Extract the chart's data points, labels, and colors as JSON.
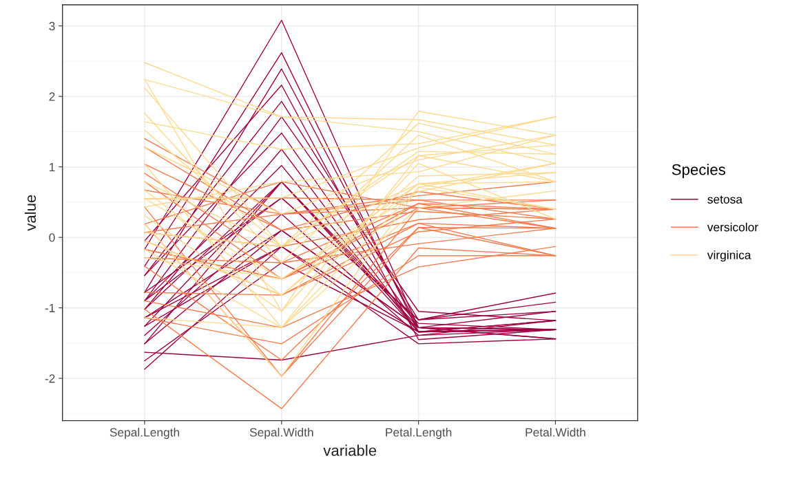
{
  "chart_data": {
    "type": "line",
    "xlabel": "variable",
    "ylabel": "value",
    "legend_title": "Species",
    "legend": "right",
    "grid": true,
    "categories": [
      "Sepal.Length",
      "Sepal.Width",
      "Petal.Length",
      "Petal.Width"
    ],
    "ylim": [
      -2.6,
      3.3
    ],
    "yticks": [
      -2,
      -1,
      0,
      1,
      2,
      3
    ],
    "series": [
      {
        "name": "setosa",
        "color": "#9e0142",
        "values": [
          -0.9,
          1.02,
          -1.34,
          -1.31
        ]
      },
      {
        "color": "#9e0142",
        "values": [
          -1.14,
          -0.13,
          -1.34,
          -1.31
        ]
      },
      {
        "color": "#9e0142",
        "values": [
          -1.39,
          0.33,
          -1.39,
          -1.31
        ]
      },
      {
        "color": "#9e0142",
        "values": [
          -1.51,
          0.1,
          -1.28,
          -1.31
        ]
      },
      {
        "color": "#9e0142",
        "values": [
          -1.02,
          1.25,
          -1.34,
          -1.31
        ]
      },
      {
        "color": "#9e0142",
        "values": [
          -0.54,
          1.93,
          -1.17,
          -1.05
        ]
      },
      {
        "color": "#9e0142",
        "values": [
          -1.51,
          0.79,
          -1.34,
          -1.18
        ]
      },
      {
        "color": "#9e0142",
        "values": [
          -1.02,
          0.79,
          -1.28,
          -1.31
        ]
      },
      {
        "color": "#9e0142",
        "values": [
          -1.75,
          -0.36,
          -1.34,
          -1.31
        ]
      },
      {
        "color": "#9e0142",
        "values": [
          -1.14,
          0.1,
          -1.28,
          -1.44
        ]
      },
      {
        "color": "#9e0142",
        "values": [
          -0.54,
          1.48,
          -1.28,
          -1.31
        ]
      },
      {
        "color": "#9e0142",
        "values": [
          -1.26,
          0.79,
          -1.22,
          -1.31
        ]
      },
      {
        "color": "#9e0142",
        "values": [
          -1.87,
          -0.13,
          -1.51,
          -1.44
        ]
      },
      {
        "color": "#9e0142",
        "values": [
          -0.05,
          2.16,
          -1.45,
          -1.31
        ]
      },
      {
        "color": "#9e0142",
        "values": [
          -0.17,
          3.08,
          -1.28,
          -1.05
        ]
      },
      {
        "color": "#9e0142",
        "values": [
          -0.78,
          2.39,
          -1.28,
          -1.44
        ]
      },
      {
        "color": "#9e0142",
        "values": [
          -0.41,
          2.62,
          -1.34,
          -1.31
        ]
      },
      {
        "color": "#9e0142",
        "values": [
          -0.9,
          1.71,
          -1.05,
          -1.18
        ]
      },
      {
        "color": "#9e0142",
        "values": [
          -1.63,
          -1.74,
          -1.39,
          -1.18
        ]
      },
      {
        "color": "#9e0142",
        "values": [
          -0.78,
          0.56,
          -1.17,
          -0.92
        ]
      },
      {
        "color": "#9e0142",
        "values": [
          -1.26,
          -0.13,
          -1.34,
          -1.18
        ]
      },
      {
        "color": "#9e0142",
        "values": [
          -0.9,
          0.56,
          -1.17,
          -0.79
        ]
      },
      {
        "name": "versicolor",
        "color": "#f9794a",
        "values": [
          1.4,
          0.33,
          0.53,
          0.26
        ]
      },
      {
        "color": "#f9794a",
        "values": [
          0.67,
          0.33,
          0.42,
          0.4
        ]
      },
      {
        "color": "#f9794a",
        "values": [
          1.28,
          0.1,
          0.65,
          0.4
        ]
      },
      {
        "color": "#f9794a",
        "values": [
          -0.41,
          -1.74,
          0.14,
          0.13
        ]
      },
      {
        "color": "#f9794a",
        "values": [
          0.79,
          -0.59,
          0.48,
          0.4
        ]
      },
      {
        "color": "#f9794a",
        "values": [
          -0.17,
          -0.59,
          0.42,
          0.13
        ]
      },
      {
        "color": "#f9794a",
        "values": [
          0.55,
          0.56,
          0.53,
          0.53
        ]
      },
      {
        "color": "#f9794a",
        "values": [
          -1.14,
          -1.51,
          -0.26,
          -0.26
        ]
      },
      {
        "color": "#f9794a",
        "values": [
          0.91,
          -0.36,
          0.48,
          0.13
        ]
      },
      {
        "color": "#f9794a",
        "values": [
          -0.78,
          -0.82,
          0.08,
          0.26
        ]
      },
      {
        "color": "#f9794a",
        "values": [
          -1.02,
          -2.43,
          -0.15,
          -0.26
        ]
      },
      {
        "color": "#f9794a",
        "values": [
          0.07,
          -0.13,
          0.25,
          0.4
        ]
      },
      {
        "color": "#f9794a",
        "values": [
          0.19,
          -1.97,
          0.14,
          -0.26
        ]
      },
      {
        "color": "#f9794a",
        "values": [
          -0.29,
          -0.36,
          -0.09,
          0.13
        ]
      },
      {
        "color": "#f9794a",
        "values": [
          1.04,
          0.1,
          0.37,
          0.26
        ]
      },
      {
        "color": "#f9794a",
        "values": [
          -0.05,
          -0.82,
          0.2,
          -0.26
        ]
      },
      {
        "color": "#f9794a",
        "values": [
          0.43,
          -1.97,
          0.42,
          0.4
        ]
      },
      {
        "color": "#f9794a",
        "values": [
          0.07,
          0.33,
          0.59,
          0.79
        ]
      },
      {
        "color": "#f9794a",
        "values": [
          -0.9,
          -1.28,
          -0.42,
          -0.13
        ]
      },
      {
        "color": "#f9794a",
        "values": [
          -0.17,
          -0.59,
          0.2,
          0.13
        ]
      },
      {
        "color": "#f9794a",
        "values": [
          0.19,
          0.79,
          0.42,
          0.53
        ]
      },
      {
        "name": "virginica",
        "color": "#fed98e",
        "values": [
          0.55,
          0.56,
          1.27,
          1.71
        ]
      },
      {
        "color": "#fed98e",
        "values": [
          -0.05,
          -0.82,
          0.76,
          0.92
        ]
      },
      {
        "color": "#fed98e",
        "values": [
          1.52,
          -0.13,
          1.22,
          1.18
        ]
      },
      {
        "color": "#fed98e",
        "values": [
          0.79,
          -0.13,
          1.16,
          1.31
        ]
      },
      {
        "color": "#fed98e",
        "values": [
          2.12,
          -0.13,
          1.62,
          1.18
        ]
      },
      {
        "color": "#fed98e",
        "values": [
          -1.14,
          -1.28,
          0.42,
          0.66
        ]
      },
      {
        "color": "#fed98e",
        "values": [
          1.76,
          -0.36,
          1.45,
          0.79
        ]
      },
      {
        "color": "#fed98e",
        "values": [
          1.04,
          -1.28,
          1.16,
          0.79
        ]
      },
      {
        "color": "#fed98e",
        "values": [
          1.64,
          1.25,
          1.33,
          1.71
        ]
      },
      {
        "color": "#fed98e",
        "values": [
          0.67,
          -0.82,
          0.87,
          0.92
        ]
      },
      {
        "color": "#fed98e",
        "values": [
          -0.17,
          -1.28,
          0.71,
          1.05
        ]
      },
      {
        "color": "#fed98e",
        "values": [
          2.24,
          1.71,
          1.67,
          1.31
        ]
      },
      {
        "color": "#fed98e",
        "values": [
          2.24,
          -1.05,
          1.79,
          1.45
        ]
      },
      {
        "color": "#fed98e",
        "values": [
          0.19,
          -1.97,
          0.71,
          0.4
        ]
      },
      {
        "color": "#fed98e",
        "values": [
          1.28,
          0.33,
          1.1,
          1.45
        ]
      },
      {
        "color": "#fed98e",
        "values": [
          -0.29,
          -0.59,
          0.65,
          1.05
        ]
      },
      {
        "color": "#fed98e",
        "values": [
          2.48,
          1.71,
          1.5,
          1.05
        ]
      },
      {
        "color": "#fed98e",
        "values": [
          0.55,
          -0.59,
          0.76,
          0.4
        ]
      },
      {
        "color": "#fed98e",
        "values": [
          0.31,
          -1.05,
          1.05,
          0.26
        ]
      },
      {
        "color": "#fed98e",
        "values": [
          0.43,
          0.79,
          0.93,
          1.45
        ]
      },
      {
        "color": "#fed98e",
        "values": [
          0.07,
          -0.13,
          0.76,
          0.79
        ]
      }
    ]
  }
}
